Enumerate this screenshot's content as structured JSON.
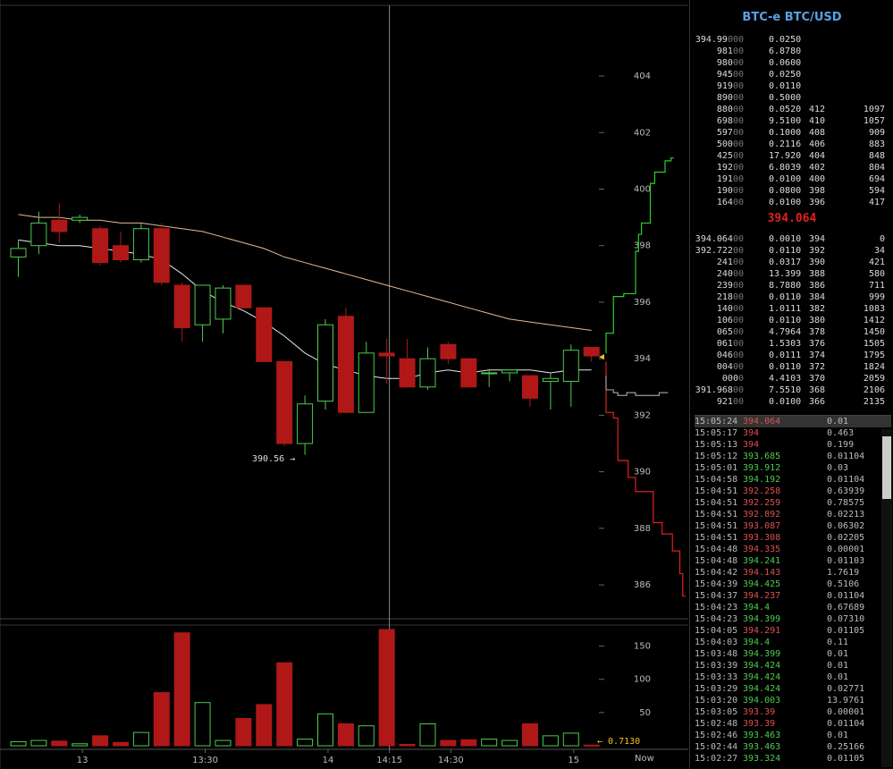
{
  "title": "BTC-e BTC/USD",
  "last_price": "394.064",
  "asks": [
    {
      "p_main": "394.99",
      "p_dim": "000",
      "amt": "0.0250",
      "lvl": "",
      "cum": ""
    },
    {
      "p_main": "981",
      "p_dim": "00",
      "amt": "6.8780",
      "lvl": "",
      "cum": ""
    },
    {
      "p_main": "980",
      "p_dim": "00",
      "amt": "0.0600",
      "lvl": "",
      "cum": ""
    },
    {
      "p_main": "945",
      "p_dim": "00",
      "amt": "0.0250",
      "lvl": "",
      "cum": ""
    },
    {
      "p_main": "919",
      "p_dim": "00",
      "amt": "0.0110",
      "lvl": "",
      "cum": ""
    },
    {
      "p_main": "890",
      "p_dim": "00",
      "amt": "0.5000",
      "lvl": "",
      "cum": ""
    },
    {
      "p_main": "880",
      "p_dim": "00",
      "amt": "0.0520",
      "lvl": "412",
      "cum": "1097"
    },
    {
      "p_main": "698",
      "p_dim": "00",
      "amt": "9.5100",
      "lvl": "410",
      "cum": "1057"
    },
    {
      "p_main": "597",
      "p_dim": "00",
      "amt": "0.1000",
      "lvl": "408",
      "cum": "909"
    },
    {
      "p_main": "500",
      "p_dim": "00",
      "amt": "0.2116",
      "lvl": "406",
      "cum": "883"
    },
    {
      "p_main": "425",
      "p_dim": "00",
      "amt": "17.920",
      "lvl": "404",
      "cum": "848"
    },
    {
      "p_main": "192",
      "p_dim": "00",
      "amt": "6.8039",
      "lvl": "402",
      "cum": "804"
    },
    {
      "p_main": "191",
      "p_dim": "00",
      "amt": "0.0100",
      "lvl": "400",
      "cum": "694"
    },
    {
      "p_main": "190",
      "p_dim": "00",
      "amt": "0.0800",
      "lvl": "398",
      "cum": "594"
    },
    {
      "p_main": "164",
      "p_dim": "00",
      "amt": "0.0100",
      "lvl": "396",
      "cum": "417"
    }
  ],
  "bids": [
    {
      "p_main": "394.064",
      "p_dim": "00",
      "amt": "0.0010",
      "lvl": "394",
      "cum": "0"
    },
    {
      "p_main": "392.722",
      "p_dim": "00",
      "amt": "0.0110",
      "lvl": "392",
      "cum": "34"
    },
    {
      "p_main": "241",
      "p_dim": "00",
      "amt": "0.0317",
      "lvl": "390",
      "cum": "421"
    },
    {
      "p_main": "240",
      "p_dim": "00",
      "amt": "13.399",
      "lvl": "388",
      "cum": "580"
    },
    {
      "p_main": "239",
      "p_dim": "00",
      "amt": "8.7880",
      "lvl": "386",
      "cum": "711"
    },
    {
      "p_main": "218",
      "p_dim": "00",
      "amt": "0.0110",
      "lvl": "384",
      "cum": "999"
    },
    {
      "p_main": "140",
      "p_dim": "00",
      "amt": "1.0111",
      "lvl": "382",
      "cum": "1083"
    },
    {
      "p_main": "106",
      "p_dim": "00",
      "amt": "0.0110",
      "lvl": "380",
      "cum": "1412"
    },
    {
      "p_main": "065",
      "p_dim": "00",
      "amt": "4.7964",
      "lvl": "378",
      "cum": "1450"
    },
    {
      "p_main": "061",
      "p_dim": "00",
      "amt": "1.5303",
      "lvl": "376",
      "cum": "1505"
    },
    {
      "p_main": "046",
      "p_dim": "00",
      "amt": "0.0111",
      "lvl": "374",
      "cum": "1795"
    },
    {
      "p_main": "004",
      "p_dim": "00",
      "amt": "0.0110",
      "lvl": "372",
      "cum": "1824"
    },
    {
      "p_main": "000",
      "p_dim": "0",
      "amt": "4.4103",
      "lvl": "370",
      "cum": "2059"
    },
    {
      "p_main": "391.968",
      "p_dim": "00",
      "amt": "7.5510",
      "lvl": "368",
      "cum": "2106"
    },
    {
      "p_main": "921",
      "p_dim": "00",
      "amt": "0.0100",
      "lvl": "366",
      "cum": "2135"
    }
  ],
  "trades": [
    {
      "time": "15:05:24",
      "price": "394.064",
      "dir": "dn",
      "amt": "0.01"
    },
    {
      "time": "15:05:17",
      "price": "394",
      "dir": "dn",
      "amt": "0.463"
    },
    {
      "time": "15:05:13",
      "price": "394",
      "dir": "dn",
      "amt": "0.199"
    },
    {
      "time": "15:05:12",
      "price": "393.685",
      "dir": "up",
      "amt": "0.01104"
    },
    {
      "time": "15:05:01",
      "price": "393.912",
      "dir": "up",
      "amt": "0.03"
    },
    {
      "time": "15:04:58",
      "price": "394.192",
      "dir": "up",
      "amt": "0.01104"
    },
    {
      "time": "15:04:51",
      "price": "392.258",
      "dir": "dn",
      "amt": "0.63939"
    },
    {
      "time": "15:04:51",
      "price": "392.259",
      "dir": "dn",
      "amt": "0.78575"
    },
    {
      "time": "15:04:51",
      "price": "392.892",
      "dir": "dn",
      "amt": "0.02213"
    },
    {
      "time": "15:04:51",
      "price": "393.087",
      "dir": "dn",
      "amt": "0.06302"
    },
    {
      "time": "15:04:51",
      "price": "393.308",
      "dir": "dn",
      "amt": "0.02205"
    },
    {
      "time": "15:04:48",
      "price": "394.335",
      "dir": "dn",
      "amt": "0.00001"
    },
    {
      "time": "15:04:48",
      "price": "394.241",
      "dir": "up",
      "amt": "0.01103"
    },
    {
      "time": "15:04:42",
      "price": "394.143",
      "dir": "dn",
      "amt": "1.7619"
    },
    {
      "time": "15:04:39",
      "price": "394.425",
      "dir": "up",
      "amt": "0.5106"
    },
    {
      "time": "15:04:37",
      "price": "394.237",
      "dir": "dn",
      "amt": "0.01104"
    },
    {
      "time": "15:04:23",
      "price": "394.4",
      "dir": "up",
      "amt": "0.67689"
    },
    {
      "time": "15:04:23",
      "price": "394.399",
      "dir": "up",
      "amt": "0.07310"
    },
    {
      "time": "15:04:05",
      "price": "394.291",
      "dir": "dn",
      "amt": "0.01105"
    },
    {
      "time": "15:04:03",
      "price": "394.4",
      "dir": "up",
      "amt": "0.11"
    },
    {
      "time": "15:03:48",
      "price": "394.399",
      "dir": "up",
      "amt": "0.01"
    },
    {
      "time": "15:03:39",
      "price": "394.424",
      "dir": "up",
      "amt": "0.01"
    },
    {
      "time": "15:03:33",
      "price": "394.424",
      "dir": "up",
      "amt": "0.01"
    },
    {
      "time": "15:03:29",
      "price": "394.424",
      "dir": "up",
      "amt": "0.02771"
    },
    {
      "time": "15:03:20",
      "price": "394.003",
      "dir": "up",
      "amt": "13.9761"
    },
    {
      "time": "15:03:05",
      "price": "393.39",
      "dir": "dn",
      "amt": "0.00001"
    },
    {
      "time": "15:02:48",
      "price": "393.39",
      "dir": "dn",
      "amt": "0.01104"
    },
    {
      "time": "15:02:46",
      "price": "393.463",
      "dir": "up",
      "amt": "0.01"
    },
    {
      "time": "15:02:44",
      "price": "393.463",
      "dir": "up",
      "amt": "0.25166"
    },
    {
      "time": "15:02:27",
      "price": "393.324",
      "dir": "up",
      "amt": "0.01105"
    }
  ],
  "annotations": {
    "low": "390.56 →",
    "volume": "← 0.7130"
  },
  "now_label": "Now",
  "colors": {
    "up": "#4ecb4e",
    "down": "#b01818",
    "ma_fast": "#e8e8e8",
    "ma_slow": "#e8b890",
    "ask": "#2ecc2e",
    "bid": "#e02020"
  },
  "chart_data": {
    "type": "candlestick",
    "yticks": [
      386,
      388,
      390,
      392,
      394,
      396,
      398,
      400,
      402,
      404
    ],
    "ylim": [
      384.8,
      406.5
    ],
    "vol_ticks": [
      50,
      100,
      150
    ],
    "vol_max": 175,
    "xticks": [
      {
        "label": "13",
        "i": 3.5
      },
      {
        "label": "13:30",
        "i": 9.5
      },
      {
        "label": "14",
        "i": 15.5
      },
      {
        "label": "14:15",
        "i": 18.5
      },
      {
        "label": "14:30",
        "i": 21.5
      },
      {
        "label": "15",
        "i": 27.5
      }
    ],
    "crosshair_i": 18.5,
    "candles": [
      {
        "o": 397.6,
        "h": 398.2,
        "l": 396.9,
        "c": 397.9,
        "v": 6
      },
      {
        "o": 398.0,
        "h": 399.2,
        "l": 397.7,
        "c": 398.8,
        "v": 8
      },
      {
        "o": 398.9,
        "h": 399.5,
        "l": 398.1,
        "c": 398.5,
        "v": 7
      },
      {
        "o": 398.9,
        "h": 399.1,
        "l": 398.8,
        "c": 399.0,
        "v": 3
      },
      {
        "o": 398.6,
        "h": 398.7,
        "l": 397.3,
        "c": 397.4,
        "v": 15
      },
      {
        "o": 398.0,
        "h": 398.5,
        "l": 397.4,
        "c": 397.5,
        "v": 5
      },
      {
        "o": 397.5,
        "h": 398.8,
        "l": 397.4,
        "c": 398.6,
        "v": 20
      },
      {
        "o": 398.6,
        "h": 398.8,
        "l": 396.6,
        "c": 396.7,
        "v": 80
      },
      {
        "o": 396.6,
        "h": 396.7,
        "l": 394.6,
        "c": 395.1,
        "v": 170
      },
      {
        "o": 395.2,
        "h": 396.5,
        "l": 394.6,
        "c": 396.6,
        "v": 65
      },
      {
        "o": 395.4,
        "h": 396.6,
        "l": 394.9,
        "c": 396.5,
        "v": 8
      },
      {
        "o": 396.6,
        "h": 396.6,
        "l": 395.8,
        "c": 395.8,
        "v": 41
      },
      {
        "o": 395.8,
        "h": 395.8,
        "l": 393.9,
        "c": 393.9,
        "v": 62
      },
      {
        "o": 393.9,
        "h": 393.9,
        "l": 390.9,
        "c": 391.0,
        "v": 125
      },
      {
        "o": 391.0,
        "h": 392.7,
        "l": 390.6,
        "c": 392.4,
        "v": 10
      },
      {
        "o": 392.5,
        "h": 395.4,
        "l": 392.2,
        "c": 395.2,
        "v": 48
      },
      {
        "o": 395.5,
        "h": 395.8,
        "l": 392.1,
        "c": 392.1,
        "v": 33
      },
      {
        "o": 392.1,
        "h": 394.6,
        "l": 392.1,
        "c": 394.2,
        "v": 30
      },
      {
        "o": 394.2,
        "h": 394.7,
        "l": 393.1,
        "c": 394.1,
        "v": 175
      },
      {
        "o": 394.0,
        "h": 394.7,
        "l": 393.0,
        "c": 393.0,
        "v": 2
      },
      {
        "o": 393.0,
        "h": 394.4,
        "l": 392.9,
        "c": 394.0,
        "v": 33
      },
      {
        "o": 394.5,
        "h": 394.6,
        "l": 393.8,
        "c": 394.0,
        "v": 8
      },
      {
        "o": 394.0,
        "h": 394.0,
        "l": 393.0,
        "c": 393.0,
        "v": 9
      },
      {
        "o": 393.5,
        "h": 393.6,
        "l": 393.0,
        "c": 393.5,
        "v": 10
      },
      {
        "o": 393.5,
        "h": 393.6,
        "l": 393.2,
        "c": 393.6,
        "v": 8
      },
      {
        "o": 393.4,
        "h": 393.4,
        "l": 392.3,
        "c": 392.6,
        "v": 33
      },
      {
        "o": 393.2,
        "h": 393.5,
        "l": 392.2,
        "c": 393.3,
        "v": 15
      },
      {
        "o": 393.2,
        "h": 394.5,
        "l": 392.3,
        "c": 394.3,
        "v": 19
      },
      {
        "o": 394.4,
        "h": 394.4,
        "l": 393.9,
        "c": 394.1,
        "v": 1
      }
    ],
    "ma_fast": [
      398.2,
      398.1,
      398.0,
      398.0,
      397.9,
      397.8,
      397.7,
      397.5,
      397.0,
      396.4,
      396.0,
      395.7,
      395.3,
      394.8,
      394.2,
      393.8,
      393.6,
      393.4,
      393.3,
      393.3,
      393.5,
      393.6,
      393.5,
      393.6,
      393.6,
      393.6,
      393.5,
      393.6,
      393.6
    ],
    "ma_slow": [
      399.1,
      399.0,
      399.0,
      398.9,
      398.9,
      398.8,
      398.8,
      398.7,
      398.6,
      398.5,
      398.3,
      398.1,
      397.9,
      397.6,
      397.4,
      397.2,
      397.0,
      396.8,
      396.6,
      396.4,
      396.2,
      396.0,
      395.8,
      395.6,
      395.4,
      395.3,
      395.2,
      395.1,
      395.0
    ],
    "depth_ask": [
      [
        394.2,
        0
      ],
      [
        394.9,
        5
      ],
      [
        396.2,
        12
      ],
      [
        396.3,
        20
      ],
      [
        397.8,
        22
      ],
      [
        398.4,
        24
      ],
      [
        398.8,
        30
      ],
      [
        400.2,
        33
      ],
      [
        400.6,
        40
      ],
      [
        401.0,
        44
      ],
      [
        401.1,
        46
      ]
    ],
    "depth_bid": [
      [
        393.9,
        0
      ],
      [
        392.1,
        5
      ],
      [
        391.9,
        8
      ],
      [
        390.4,
        15
      ],
      [
        389.8,
        20
      ],
      [
        389.3,
        32
      ],
      [
        388.2,
        38
      ],
      [
        387.8,
        45
      ],
      [
        387.2,
        50
      ],
      [
        386.4,
        52
      ],
      [
        385.6,
        54
      ]
    ],
    "depth_mid": [
      [
        393.4,
        0
      ],
      [
        392.9,
        5
      ],
      [
        392.8,
        8
      ],
      [
        392.7,
        14
      ],
      [
        392.8,
        20
      ],
      [
        392.7,
        36
      ],
      [
        392.8,
        42
      ]
    ]
  }
}
